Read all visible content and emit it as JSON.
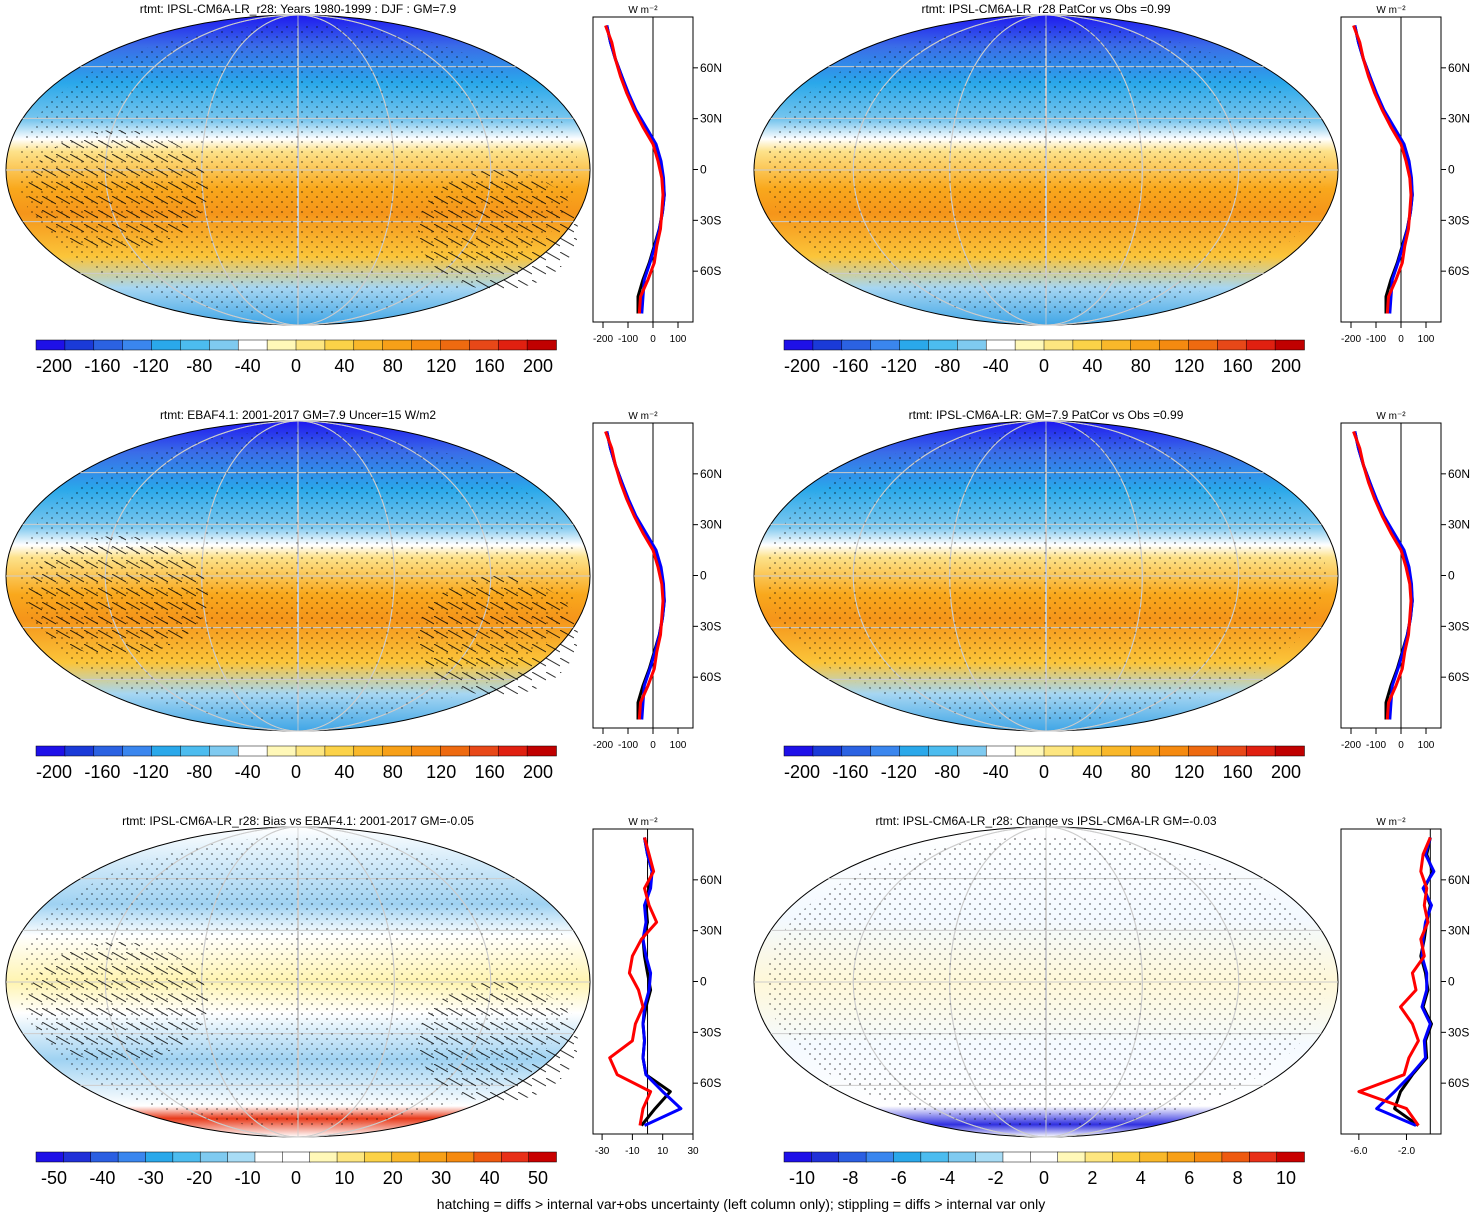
{
  "footnote": "hatching = diffs > internal var+obs uncertainty (left column only); stippling = diffs > internal var only",
  "chart_data": [
    {
      "type": "heatmap",
      "title": "rtmt: IPSL-CM6A-LR_r28: Years 1980-1999 : DJF : GM=7.9",
      "colorbar_ticks": [
        "-200",
        "-160",
        "-120",
        "-80",
        "-40",
        "0",
        "40",
        "80",
        "120",
        "160",
        "200"
      ],
      "profile_x_ticks": [
        "-200",
        "-100",
        "0",
        "100"
      ],
      "profile_lat_ticks": [
        "60N",
        "30N",
        "0",
        "30S",
        "60S"
      ],
      "profile_units": "W m-2",
      "overlay": "hatching+stippling",
      "zonal_mean_series": [
        {
          "color": "#000000",
          "lat": [
            85,
            75,
            65,
            55,
            45,
            35,
            25,
            15,
            5,
            -5,
            -15,
            -25,
            -35,
            -45,
            -55,
            -65,
            -75,
            -85
          ],
          "values": [
            -185,
            -170,
            -150,
            -125,
            -100,
            -70,
            -30,
            10,
            30,
            40,
            45,
            38,
            25,
            5,
            -15,
            -40,
            -60,
            -60
          ]
        },
        {
          "color": "#0000ff",
          "lat": [
            85,
            75,
            65,
            55,
            45,
            35,
            25,
            15,
            5,
            -5,
            -15,
            -25,
            -35,
            -45,
            -55,
            -65,
            -75,
            -85
          ],
          "values": [
            -185,
            -170,
            -150,
            -125,
            -98,
            -68,
            -28,
            12,
            32,
            42,
            45,
            38,
            26,
            8,
            -12,
            -35,
            -40,
            -45
          ]
        },
        {
          "color": "#ff0000",
          "lat": [
            85,
            75,
            65,
            55,
            45,
            35,
            25,
            15,
            5,
            -5,
            -15,
            -25,
            -35,
            -45,
            -55,
            -65,
            -75,
            -85
          ],
          "values": [
            -190,
            -165,
            -150,
            -130,
            -105,
            -75,
            -40,
            0,
            20,
            35,
            40,
            35,
            30,
            15,
            5,
            -20,
            -50,
            -55
          ]
        }
      ]
    },
    {
      "type": "heatmap",
      "title": "rtmt: IPSL-CM6A-LR_r28 PatCor vs Obs =0.99",
      "colorbar_ticks": [
        "-200",
        "-160",
        "-120",
        "-80",
        "-40",
        "0",
        "40",
        "80",
        "120",
        "160",
        "200"
      ],
      "profile_x_ticks": [
        "-200",
        "-100",
        "0",
        "100"
      ],
      "profile_lat_ticks": [
        "60N",
        "30N",
        "0",
        "30S",
        "60S"
      ],
      "profile_units": "W m-2",
      "overlay": "stippling",
      "zonal_mean_series": [
        {
          "color": "#000000",
          "lat": [
            85,
            75,
            65,
            55,
            45,
            35,
            25,
            15,
            5,
            -5,
            -15,
            -25,
            -35,
            -45,
            -55,
            -65,
            -75,
            -85
          ],
          "values": [
            -185,
            -170,
            -150,
            -125,
            -100,
            -70,
            -30,
            10,
            30,
            40,
            45,
            38,
            25,
            5,
            -15,
            -40,
            -60,
            -60
          ]
        },
        {
          "color": "#0000ff",
          "lat": [
            85,
            75,
            65,
            55,
            45,
            35,
            25,
            15,
            5,
            -5,
            -15,
            -25,
            -35,
            -45,
            -55,
            -65,
            -75,
            -85
          ],
          "values": [
            -185,
            -170,
            -150,
            -125,
            -98,
            -68,
            -28,
            12,
            32,
            42,
            45,
            38,
            26,
            8,
            -12,
            -35,
            -40,
            -45
          ]
        },
        {
          "color": "#ff0000",
          "lat": [
            85,
            75,
            65,
            55,
            45,
            35,
            25,
            15,
            5,
            -5,
            -15,
            -25,
            -35,
            -45,
            -55,
            -65,
            -75,
            -85
          ],
          "values": [
            -190,
            -165,
            -150,
            -130,
            -105,
            -75,
            -40,
            0,
            20,
            35,
            40,
            35,
            30,
            15,
            5,
            -20,
            -50,
            -55
          ]
        }
      ]
    },
    {
      "type": "heatmap",
      "title": "rtmt: EBAF4.1: 2001-2017 GM=7.9 Uncer=15 W/m2",
      "colorbar_ticks": [
        "-200",
        "-160",
        "-120",
        "-80",
        "-40",
        "0",
        "40",
        "80",
        "120",
        "160",
        "200"
      ],
      "profile_x_ticks": [
        "-200",
        "-100",
        "0",
        "100"
      ],
      "profile_lat_ticks": [
        "60N",
        "30N",
        "0",
        "30S",
        "60S"
      ],
      "profile_units": "W m-2",
      "overlay": "hatching+stippling",
      "zonal_mean_series": [
        {
          "color": "#000000",
          "lat": [
            85,
            75,
            65,
            55,
            45,
            35,
            25,
            15,
            5,
            -5,
            -15,
            -25,
            -35,
            -45,
            -55,
            -65,
            -75,
            -85
          ],
          "values": [
            -185,
            -170,
            -150,
            -125,
            -100,
            -70,
            -30,
            10,
            30,
            40,
            45,
            38,
            25,
            5,
            -15,
            -40,
            -60,
            -60
          ]
        },
        {
          "color": "#0000ff",
          "lat": [
            85,
            75,
            65,
            55,
            45,
            35,
            25,
            15,
            5,
            -5,
            -15,
            -25,
            -35,
            -45,
            -55,
            -65,
            -75,
            -85
          ],
          "values": [
            -185,
            -170,
            -150,
            -125,
            -98,
            -68,
            -28,
            12,
            32,
            42,
            45,
            38,
            26,
            8,
            -12,
            -35,
            -40,
            -45
          ]
        },
        {
          "color": "#ff0000",
          "lat": [
            85,
            75,
            65,
            55,
            45,
            35,
            25,
            15,
            5,
            -5,
            -15,
            -25,
            -35,
            -45,
            -55,
            -65,
            -75,
            -85
          ],
          "values": [
            -190,
            -165,
            -150,
            -130,
            -105,
            -75,
            -40,
            0,
            20,
            35,
            40,
            35,
            30,
            15,
            5,
            -20,
            -50,
            -55
          ]
        }
      ]
    },
    {
      "type": "heatmap",
      "title": "rtmt: IPSL-CM6A-LR: GM=7.9 PatCor vs Obs =0.99",
      "colorbar_ticks": [
        "-200",
        "-160",
        "-120",
        "-80",
        "-40",
        "0",
        "40",
        "80",
        "120",
        "160",
        "200"
      ],
      "profile_x_ticks": [
        "-200",
        "-100",
        "0",
        "100"
      ],
      "profile_lat_ticks": [
        "60N",
        "30N",
        "0",
        "30S",
        "60S"
      ],
      "profile_units": "W m-2",
      "overlay": "stippling",
      "zonal_mean_series": [
        {
          "color": "#000000",
          "lat": [
            85,
            75,
            65,
            55,
            45,
            35,
            25,
            15,
            5,
            -5,
            -15,
            -25,
            -35,
            -45,
            -55,
            -65,
            -75,
            -85
          ],
          "values": [
            -185,
            -170,
            -150,
            -125,
            -100,
            -70,
            -30,
            10,
            30,
            40,
            45,
            38,
            25,
            5,
            -15,
            -40,
            -60,
            -60
          ]
        },
        {
          "color": "#0000ff",
          "lat": [
            85,
            75,
            65,
            55,
            45,
            35,
            25,
            15,
            5,
            -5,
            -15,
            -25,
            -35,
            -45,
            -55,
            -65,
            -75,
            -85
          ],
          "values": [
            -185,
            -170,
            -150,
            -125,
            -98,
            -68,
            -28,
            12,
            32,
            42,
            45,
            38,
            26,
            8,
            -12,
            -35,
            -40,
            -45
          ]
        },
        {
          "color": "#ff0000",
          "lat": [
            85,
            75,
            65,
            55,
            45,
            35,
            25,
            15,
            5,
            -5,
            -15,
            -25,
            -35,
            -45,
            -55,
            -65,
            -75,
            -85
          ],
          "values": [
            -190,
            -165,
            -150,
            -130,
            -105,
            -75,
            -40,
            0,
            20,
            35,
            40,
            35,
            30,
            15,
            5,
            -20,
            -50,
            -55
          ]
        }
      ]
    },
    {
      "type": "heatmap",
      "title": "rtmt: IPSL-CM6A-LR_r28: Bias vs EBAF4.1: 2001-2017 GM=-0.05",
      "colorbar_ticks": [
        "-50",
        "-40",
        "-30",
        "-20",
        "-10",
        "0",
        "10",
        "20",
        "30",
        "40",
        "50"
      ],
      "profile_x_ticks": [
        "-30",
        "-10",
        "10",
        "30"
      ],
      "profile_lat_ticks": [
        "60N",
        "30N",
        "0",
        "30S",
        "60S"
      ],
      "profile_units": "W m-2",
      "overlay": "hatching+stippling",
      "zonal_mean_series": [
        {
          "color": "#000000",
          "lat": [
            85,
            75,
            65,
            55,
            45,
            35,
            25,
            15,
            5,
            -5,
            -15,
            -25,
            -35,
            -45,
            -55,
            -65,
            -75,
            -85
          ],
          "values": [
            -2,
            0,
            3,
            1,
            -1,
            0,
            -3,
            -2,
            0,
            2,
            -1,
            -3,
            -2,
            -3,
            -1,
            15,
            5,
            -4
          ]
        },
        {
          "color": "#0000ff",
          "lat": [
            85,
            75,
            65,
            55,
            45,
            35,
            25,
            15,
            5,
            -5,
            -15,
            -25,
            -35,
            -45,
            -55,
            -65,
            -75,
            -85
          ],
          "values": [
            -2,
            0,
            3,
            2,
            -2,
            -1,
            -3,
            -1,
            2,
            1,
            -2,
            -3,
            -2,
            -3,
            -1,
            10,
            22,
            -2
          ]
        },
        {
          "color": "#ff0000",
          "lat": [
            85,
            75,
            65,
            55,
            45,
            35,
            25,
            15,
            5,
            -5,
            -15,
            -25,
            -35,
            -45,
            -55,
            -65,
            -75,
            -85
          ],
          "values": [
            -2,
            1,
            4,
            -2,
            1,
            6,
            -4,
            -10,
            -12,
            -6,
            -3,
            -8,
            -10,
            -25,
            -20,
            2,
            -3,
            -5
          ]
        }
      ]
    },
    {
      "type": "heatmap",
      "title": "rtmt: IPSL-CM6A-LR_r28: Change vs IPSL-CM6A-LR GM=-0.03",
      "colorbar_ticks": [
        "-10",
        "-8",
        "-6",
        "-4",
        "-2",
        "0",
        "2",
        "4",
        "6",
        "8",
        "10"
      ],
      "profile_x_ticks": [
        "-6.0",
        "-2.0"
      ],
      "profile_lat_ticks": [
        "60N",
        "30N",
        "0",
        "30S",
        "60S"
      ],
      "profile_units": "W m-2",
      "overlay": "stippling",
      "zonal_mean_series": [
        {
          "color": "#000000",
          "lat": [
            85,
            75,
            65,
            55,
            45,
            35,
            25,
            15,
            5,
            -5,
            -15,
            -25,
            -35,
            -45,
            -55,
            -65,
            -75,
            -85
          ],
          "values": [
            0,
            -0.3,
            0.2,
            -0.5,
            0,
            -0.3,
            -0.5,
            -0.8,
            -0.4,
            -0.2,
            -0.6,
            0.1,
            -0.4,
            -0.3,
            -1.5,
            -2.5,
            -3,
            -1
          ]
        },
        {
          "color": "#0000ff",
          "lat": [
            85,
            75,
            65,
            55,
            45,
            35,
            25,
            15,
            5,
            -5,
            -15,
            -25,
            -35,
            -45,
            -55,
            -65,
            -75,
            -85
          ],
          "values": [
            0,
            -0.4,
            0.3,
            -0.6,
            0.1,
            -0.4,
            -0.6,
            -0.7,
            -0.3,
            -0.3,
            -0.7,
            0,
            -0.5,
            -0.4,
            -1.6,
            -3,
            -4.5,
            -1.2
          ]
        },
        {
          "color": "#ff0000",
          "lat": [
            85,
            75,
            65,
            55,
            45,
            35,
            25,
            15,
            5,
            -5,
            -15,
            -25,
            -35,
            -45,
            -55,
            -65,
            -75,
            -85
          ],
          "values": [
            0,
            -0.6,
            -0.8,
            -0.3,
            -0.5,
            -0.2,
            -0.8,
            -0.5,
            -1.5,
            -1.2,
            -2.5,
            -1.5,
            -1,
            -1.8,
            -2.2,
            -6,
            -2,
            -1
          ]
        }
      ]
    }
  ]
}
